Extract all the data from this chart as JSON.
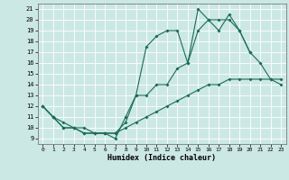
{
  "xlabel": "Humidex (Indice chaleur)",
  "bg_color": "#cce8e4",
  "line_color": "#1a6b5a",
  "xlim": [
    -0.5,
    23.5
  ],
  "ylim": [
    8.5,
    21.5
  ],
  "xticks": [
    0,
    1,
    2,
    3,
    4,
    5,
    6,
    7,
    8,
    9,
    10,
    11,
    12,
    13,
    14,
    15,
    16,
    17,
    18,
    19,
    20,
    21,
    22,
    23
  ],
  "yticks": [
    9,
    10,
    11,
    12,
    13,
    14,
    15,
    16,
    17,
    18,
    19,
    20,
    21
  ],
  "line1_x": [
    0,
    1,
    2,
    3,
    4,
    5,
    6,
    7,
    8,
    9,
    10,
    11,
    12,
    13,
    14,
    15,
    16,
    17,
    18,
    19,
    20,
    21,
    22,
    23
  ],
  "line1_y": [
    12,
    11,
    10,
    10,
    10,
    9.5,
    9.5,
    9.5,
    10.5,
    13,
    13,
    14,
    14,
    15.5,
    16,
    19,
    20,
    20,
    20,
    19,
    17,
    16,
    14.5,
    14
  ],
  "line2_x": [
    0,
    1,
    2,
    3,
    4,
    5,
    6,
    7,
    8,
    9,
    10,
    11,
    12,
    13,
    14,
    15,
    16,
    17,
    18,
    19,
    20
  ],
  "line2_y": [
    12,
    11,
    10,
    10,
    9.5,
    9.5,
    9.5,
    9,
    11,
    13,
    17.5,
    18.5,
    19,
    19,
    16,
    21,
    20,
    19,
    20.5,
    19,
    17
  ],
  "line3_x": [
    0,
    1,
    2,
    3,
    4,
    5,
    6,
    7,
    8,
    9,
    10,
    11,
    12,
    13,
    14,
    15,
    16,
    17,
    18,
    19,
    20,
    21,
    22,
    23
  ],
  "line3_y": [
    12,
    11,
    10.5,
    10,
    9.5,
    9.5,
    9.5,
    9.5,
    10,
    10.5,
    11,
    11.5,
    12,
    12.5,
    13,
    13.5,
    14,
    14,
    14.5,
    14.5,
    14.5,
    14.5,
    14.5,
    14.5
  ]
}
